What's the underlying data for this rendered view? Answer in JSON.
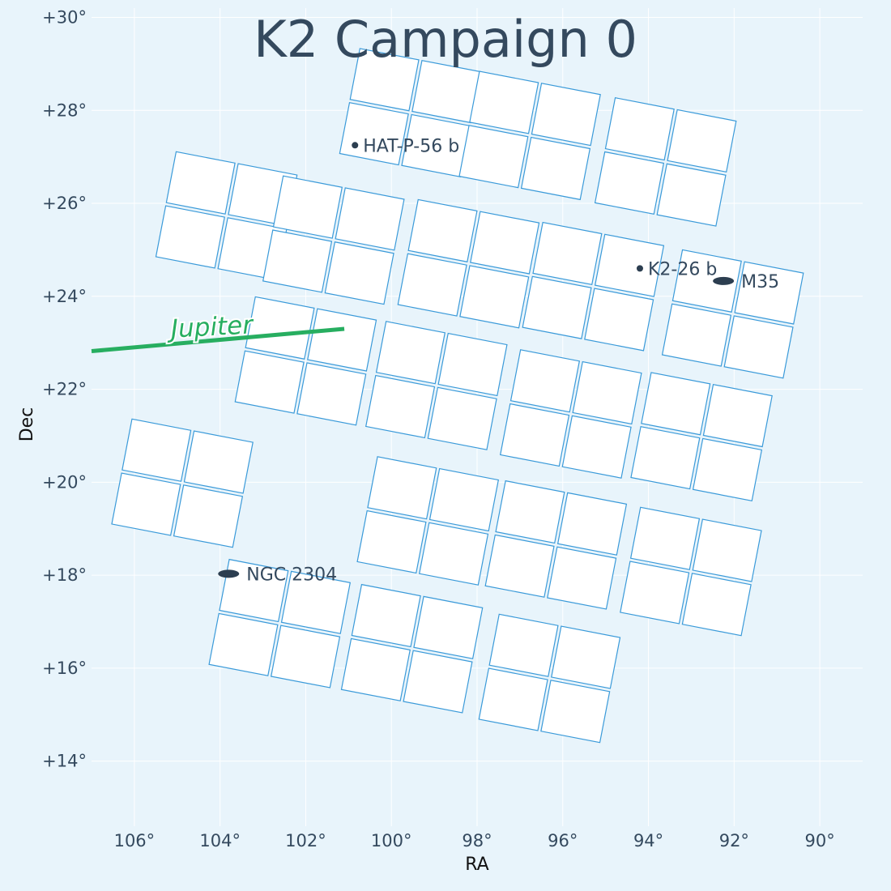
{
  "chart_data": {
    "type": "scatter",
    "title": "K2 Campaign 0",
    "xlabel": "RA",
    "ylabel": "Dec",
    "xlim": [
      107,
      89
    ],
    "ylim": [
      12.6,
      30.2
    ],
    "x_ticks": [
      106,
      104,
      102,
      100,
      98,
      96,
      94,
      92,
      90
    ],
    "x_tick_labels": [
      "106°",
      "104°",
      "102°",
      "100°",
      "98°",
      "96°",
      "94°",
      "92°",
      "90°"
    ],
    "y_ticks": [
      30,
      28,
      26,
      24,
      22,
      20,
      18,
      16,
      14
    ],
    "y_tick_labels": [
      "+30°",
      "+28°",
      "+26°",
      "+24°",
      "+22°",
      "+20°",
      "+18°",
      "+16°",
      "+14°"
    ],
    "grid": true,
    "colors": {
      "background": "#e8f4fb",
      "grid": "#ffffff",
      "ccd": "#3a9ad9",
      "jupiter": "#27ae60",
      "object": "#2c3e50",
      "text": "#34495e"
    },
    "modules": [
      {
        "center": [
          99.56,
          27.95
        ],
        "angle": 10.9
      },
      {
        "center": [
          96.77,
          27.46
        ],
        "angle": 10.9
      },
      {
        "center": [
          93.6,
          26.89
        ],
        "angle": 10.9
      },
      {
        "center": [
          103.85,
          25.73
        ],
        "angle": 10.9
      },
      {
        "center": [
          101.35,
          25.21
        ],
        "angle": 10.9
      },
      {
        "center": [
          98.2,
          24.7
        ],
        "angle": 10.9
      },
      {
        "center": [
          95.29,
          24.21
        ],
        "angle": 10.9
      },
      {
        "center": [
          92.03,
          23.62
        ],
        "angle": 10.9
      },
      {
        "center": [
          102.0,
          22.61
        ],
        "angle": 10.9
      },
      {
        "center": [
          98.95,
          22.08
        ],
        "angle": 10.9
      },
      {
        "center": [
          95.81,
          21.47
        ],
        "angle": 10.9
      },
      {
        "center": [
          92.76,
          20.98
        ],
        "angle": 10.9
      },
      {
        "center": [
          104.88,
          19.98
        ],
        "angle": 10.9
      },
      {
        "center": [
          99.15,
          19.17
        ],
        "angle": 10.9
      },
      {
        "center": [
          96.16,
          18.65
        ],
        "angle": 10.9
      },
      {
        "center": [
          93.01,
          18.08
        ],
        "angle": 10.9
      },
      {
        "center": [
          102.61,
          16.96
        ],
        "angle": 10.9
      },
      {
        "center": [
          99.52,
          16.42
        ],
        "angle": 10.9
      },
      {
        "center": [
          96.31,
          15.78
        ],
        "angle": 10.9
      }
    ],
    "jupiter": {
      "label": "Jupiter",
      "path": [
        [
          107.0,
          22.82
        ],
        [
          101.1,
          23.3
        ]
      ]
    },
    "objects": [
      {
        "name": "HAT-P-56 b",
        "ra": 100.85,
        "dec": 27.25,
        "marker": "point"
      },
      {
        "name": "K2-26 b",
        "ra": 94.2,
        "dec": 24.6,
        "marker": "point"
      },
      {
        "name": "M35",
        "ra": 92.25,
        "dec": 24.33,
        "marker": "ellipse"
      },
      {
        "name": "NGC 2304",
        "ra": 103.8,
        "dec": 18.03,
        "marker": "ellipse"
      }
    ]
  }
}
